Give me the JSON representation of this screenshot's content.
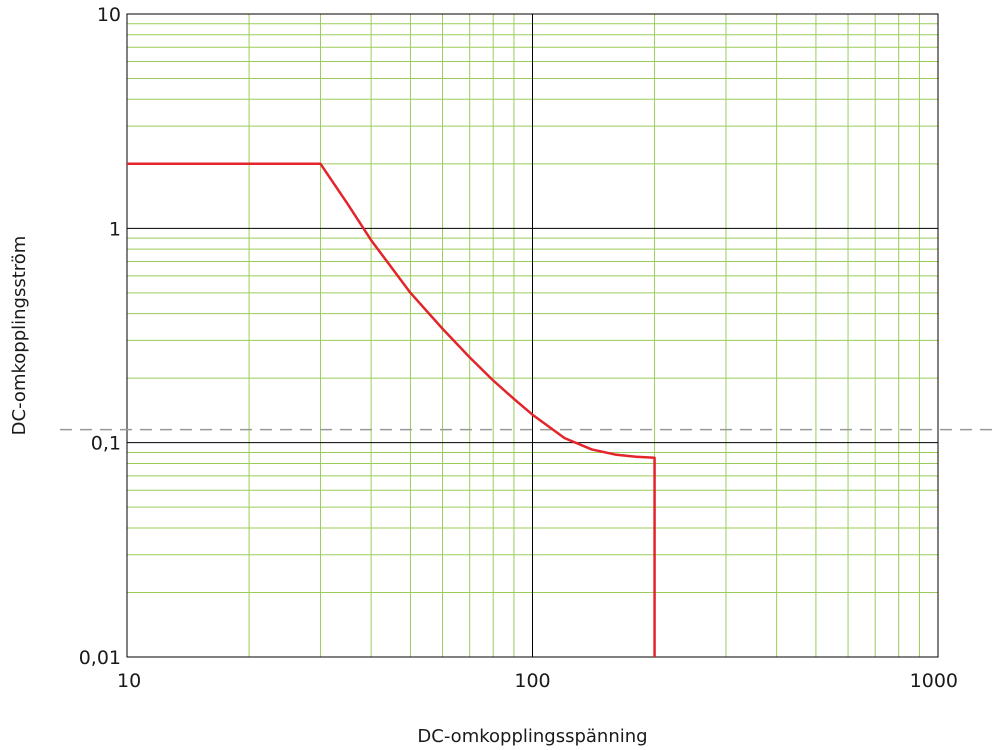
{
  "chart_data": {
    "type": "line",
    "title": "",
    "xlabel": "DC-omkopplingsspänning",
    "ylabel": "DC-omkopplingsström",
    "x_scale": "log",
    "y_scale": "log",
    "xlim": [
      10,
      1000
    ],
    "ylim": [
      0.01,
      10
    ],
    "x_ticks": [
      {
        "value": 10,
        "label": "10"
      },
      {
        "value": 100,
        "label": "100"
      },
      {
        "value": 1000,
        "label": "1000"
      }
    ],
    "y_ticks": [
      {
        "value": 10,
        "label": "10"
      },
      {
        "value": 1,
        "label": "1"
      },
      {
        "value": 0.1,
        "label": "0,1"
      },
      {
        "value": 0.01,
        "label": "0,01"
      }
    ],
    "grid": true,
    "legend": "none",
    "reference_line": {
      "axis": "y",
      "value": 0.115,
      "style": "dashed"
    },
    "series": [
      {
        "x": [
          10,
          30,
          35,
          40,
          50,
          60,
          70,
          80,
          90,
          100,
          120,
          140,
          160,
          180,
          200,
          200
        ],
        "y": [
          2,
          2,
          1.3,
          0.88,
          0.5,
          0.34,
          0.25,
          0.195,
          0.16,
          0.135,
          0.105,
          0.093,
          0.088,
          0.086,
          0.085,
          0.01
        ]
      }
    ],
    "colors": {
      "line": "#e3242b",
      "grid_minor": "#9acd5a",
      "grid_major": "#000000",
      "reference_line": "#999999"
    }
  }
}
